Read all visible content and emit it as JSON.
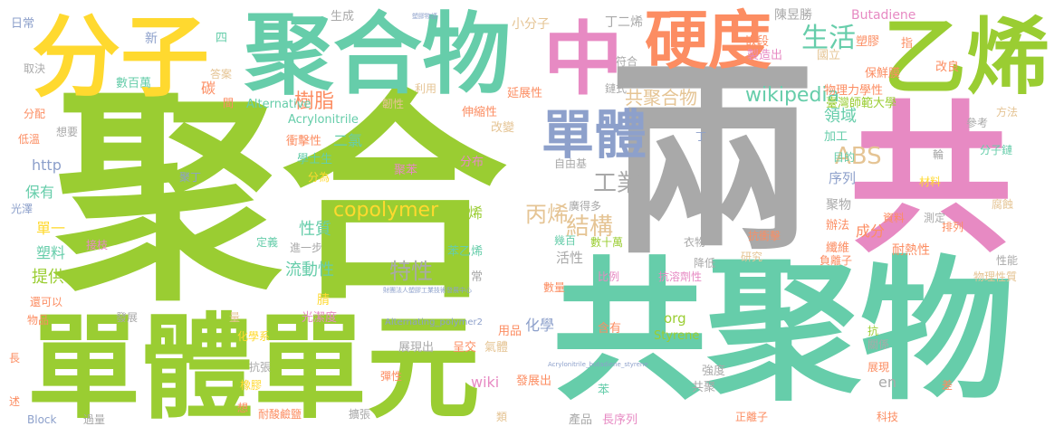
{
  "colors": {
    "green": "#9ACD32",
    "teal": "#66CDAA",
    "gray": "#A9A9A9",
    "pink": "#E78AC3",
    "yellow": "#FFD92F",
    "orange": "#FC8D62",
    "blue": "#8DA0CB",
    "tan": "#E5C494"
  },
  "words": {
    "w1": "聚合",
    "w2": "兩",
    "w3": "共聚物",
    "w4": "單體單元",
    "w5": "共",
    "w6": "聚合物",
    "w7": "分子",
    "w8": "乙烯",
    "w9": "中",
    "w10": "硬度",
    "w11": "單體",
    "w12": "生活",
    "w13": "copolymer",
    "w14": "特性",
    "w15": "結構",
    "w16": "丙烯",
    "w17": "工業",
    "w18": "樹脂",
    "w19": "wikipedia",
    "w20": "ABS",
    "w21": "共聚合物",
    "w22": "Butadiene",
    "w23": "日常",
    "w24": "生成",
    "w25": "陳昱勝",
    "w26": "丁二烯",
    "w27": "小分子",
    "w28": "新",
    "w29": "四",
    "w30": "數百萬",
    "w31": "碳",
    "w32": "Alternative",
    "w33": "Acrylonitrile",
    "w34": "延展性",
    "w35": "伸縮性",
    "w36": "改變",
    "w37": "衝擊性",
    "w38": "二氯",
    "w39": "學士生",
    "w40": "分為",
    "w41": "聚苯",
    "w42": "分布",
    "w43": "http",
    "w44": "保有",
    "w45": "單一",
    "w46": "塑料",
    "w47": "提供",
    "w48": "流動性",
    "w49": "性質",
    "w50": "進一步",
    "w51": "烯",
    "w52": "苯乙烯",
    "w53": "活性",
    "w54": "化學",
    "w55": "wiki",
    "w56": "呈交",
    "w57": "展現出",
    "w58": "氣體",
    "w59": "org",
    "w60": "Styrene",
    "w61": "用品",
    "w62": "含有",
    "w63": "發展出",
    "w64": "苯",
    "w65": "長序列",
    "w66": "產品",
    "w67": "en",
    "w68": "共聚",
    "w69": "強度",
    "w70": "正離子",
    "w71": "科技",
    "w72": "領域",
    "w73": "加工",
    "w74": "序列",
    "w75": "目的",
    "w76": "聚物",
    "w77": "成分",
    "w78": "耐熱性",
    "w79": "纖維",
    "w80": "辦法",
    "w81": "排列",
    "w82": "物理性質",
    "w83": "抗衝擊",
    "w84": "衣物",
    "w85": "抗溶劑性",
    "w86": "數十萬",
    "w87": "幾百",
    "w88": "廣得多",
    "w89": "自由基",
    "w90": "國立",
    "w91": "臺灣師範大學",
    "w92": "物理力學性",
    "w93": "保鮮膜",
    "w94": "嵌段",
    "w95": "塑膠",
    "w96": "製造出",
    "w97": "改良",
    "w98": "指",
    "w99": "符合",
    "w100": "鏈式",
    "w101": "利用",
    "w102": "韌性",
    "w103": "答案",
    "w104": "取決",
    "w105": "分配",
    "w106": "低溫",
    "w107": "想要",
    "w108": "光澤",
    "w109": "接枝",
    "w110": "定義",
    "w111": "常",
    "w112": "比例",
    "w113": "數量",
    "w114": "降低",
    "w115": "研究",
    "w116": "負離子",
    "w117": "性能",
    "w118": "還可以",
    "w119": "物品",
    "w120": "發展",
    "w121": "量",
    "w122": "光潔度",
    "w123": "化學系",
    "w124": "Alternating_polymer2",
    "w125": "抗張",
    "w126": "彈性",
    "w127": "橡膠",
    "w128": "耐酸鹼鹽",
    "w129": "擴張",
    "w130": "類",
    "w131": "過量",
    "w132": "Block",
    "w133": "長",
    "w134": "述",
    "w135": "想",
    "w136": "差",
    "w137": "關係",
    "w138": "展現",
    "w139": "抗",
    "w140": "腈",
    "w141": "材料",
    "w142": "聚合成",
    "w143": "分子鏈",
    "w144": "參考",
    "w145": "方法",
    "w146": "腐蝕",
    "w147": "輪",
    "w148": "測定",
    "w149": "資料",
    "w150": "丁",
    "w151": "聚丁",
    "w152": "間",
    "w153": "財團法人塑膠工業技術發展中心",
    "w154": "Acrylonitrile_butadiene_styrene",
    "w155": "塑膠物語"
  }
}
